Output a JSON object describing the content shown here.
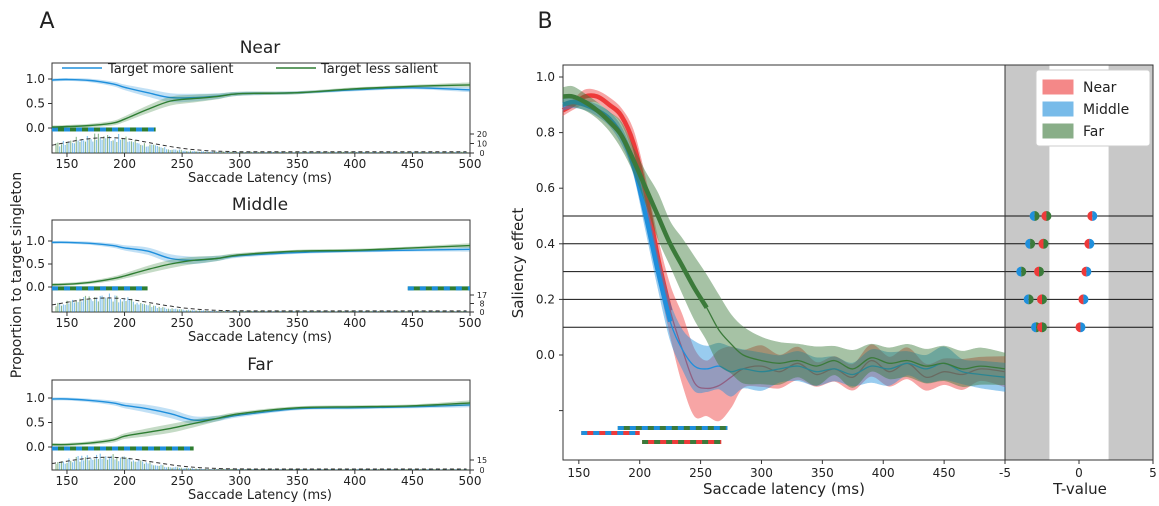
{
  "panel_labels": {
    "a": "A",
    "b": "B"
  },
  "colors": {
    "more_salient": "#1f8fdc",
    "less_salient": "#2e7d32",
    "near": "#ee3a3a",
    "middle": "#1f8fdc",
    "far": "#3b7a3a",
    "shade": "#c8c8c8"
  },
  "panel_a": {
    "ylabel": "Proportion to target singleton",
    "xlabel": "Saccade Latency (ms)",
    "xticks": [
      150,
      200,
      250,
      300,
      350,
      400,
      450,
      500
    ],
    "yticks": [
      "1.0",
      "0.5",
      "0.0"
    ],
    "legend": [
      "Target more salient",
      "Target less salient"
    ],
    "subplots": [
      {
        "title": "Near",
        "hist_ticks": [
          "20",
          "10",
          "0"
        ]
      },
      {
        "title": "Middle",
        "hist_ticks": [
          "17",
          "8",
          "0"
        ]
      },
      {
        "title": "Far",
        "hist_ticks": [
          "15",
          "0"
        ]
      }
    ]
  },
  "panel_b": {
    "ylabel": "Saliency effect",
    "xlabel": "Saccade latency (ms)",
    "tlabel": "T-value",
    "xticks": [
      150,
      200,
      250,
      300,
      350,
      400,
      450
    ],
    "yticks": [
      "1.0",
      "0.8",
      "0.6",
      "0.4",
      "0.2",
      "0.0"
    ],
    "tticks": [
      "-5",
      "0",
      "5"
    ],
    "legend": [
      "Near",
      "Middle",
      "Far"
    ]
  },
  "chart_data": [
    {
      "type": "line",
      "title": "Near",
      "xlim": [
        137,
        500
      ],
      "ylim": [
        -0.2,
        1.15
      ],
      "series": [
        {
          "name": "Target more salient",
          "x": [
            137,
            150,
            170,
            190,
            200,
            220,
            240,
            260,
            280,
            300,
            350,
            400,
            450,
            500
          ],
          "y": [
            0.98,
            0.99,
            0.97,
            0.9,
            0.83,
            0.72,
            0.62,
            0.62,
            0.65,
            0.7,
            0.72,
            0.78,
            0.82,
            0.78
          ]
        },
        {
          "name": "Target less salient",
          "x": [
            137,
            150,
            170,
            190,
            200,
            220,
            240,
            260,
            280,
            300,
            350,
            400,
            450,
            500
          ],
          "y": [
            0.02,
            0.03,
            0.05,
            0.1,
            0.18,
            0.38,
            0.55,
            0.6,
            0.64,
            0.7,
            0.72,
            0.8,
            0.85,
            0.88
          ]
        }
      ]
    },
    {
      "type": "line",
      "title": "Middle",
      "xlim": [
        137,
        500
      ],
      "ylim": [
        -0.2,
        1.15
      ],
      "series": [
        {
          "name": "Target more salient",
          "x": [
            137,
            150,
            170,
            190,
            200,
            220,
            240,
            260,
            280,
            300,
            350,
            400,
            450,
            500
          ],
          "y": [
            0.97,
            0.97,
            0.95,
            0.9,
            0.85,
            0.78,
            0.62,
            0.58,
            0.62,
            0.68,
            0.75,
            0.78,
            0.8,
            0.82
          ]
        },
        {
          "name": "Target less salient",
          "x": [
            137,
            150,
            170,
            190,
            200,
            220,
            240,
            260,
            280,
            300,
            350,
            400,
            450,
            500
          ],
          "y": [
            0.05,
            0.06,
            0.1,
            0.18,
            0.24,
            0.38,
            0.5,
            0.58,
            0.62,
            0.7,
            0.78,
            0.8,
            0.85,
            0.9
          ]
        }
      ]
    },
    {
      "type": "line",
      "title": "Far",
      "xlim": [
        137,
        500
      ],
      "ylim": [
        -0.2,
        1.15
      ],
      "series": [
        {
          "name": "Target more salient",
          "x": [
            137,
            150,
            170,
            190,
            200,
            220,
            240,
            260,
            280,
            300,
            350,
            400,
            450,
            500
          ],
          "y": [
            0.98,
            0.98,
            0.95,
            0.9,
            0.85,
            0.78,
            0.68,
            0.55,
            0.58,
            0.65,
            0.78,
            0.8,
            0.82,
            0.86
          ]
        },
        {
          "name": "Target less salient",
          "x": [
            137,
            150,
            170,
            190,
            200,
            220,
            240,
            260,
            280,
            300,
            350,
            400,
            450,
            500
          ],
          "y": [
            0.05,
            0.05,
            0.08,
            0.14,
            0.22,
            0.3,
            0.38,
            0.48,
            0.58,
            0.68,
            0.8,
            0.82,
            0.84,
            0.9
          ]
        }
      ]
    },
    {
      "type": "line",
      "xlim": [
        137,
        500
      ],
      "ylim": [
        -0.38,
        1.05
      ],
      "series": [
        {
          "name": "Near",
          "x": [
            137,
            145,
            155,
            165,
            175,
            185,
            195,
            205,
            215,
            225,
            235,
            245,
            255,
            265,
            275,
            285,
            300,
            315,
            330,
            345,
            360,
            375,
            390,
            405,
            420,
            435,
            450,
            465,
            480,
            500
          ],
          "y": [
            0.88,
            0.9,
            0.93,
            0.93,
            0.9,
            0.86,
            0.76,
            0.58,
            0.35,
            0.16,
            0.02,
            -0.1,
            -0.12,
            -0.11,
            -0.08,
            -0.05,
            -0.04,
            -0.06,
            -0.03,
            -0.07,
            -0.05,
            -0.08,
            -0.02,
            -0.06,
            -0.03,
            -0.08,
            -0.06,
            -0.07,
            -0.05,
            -0.06
          ]
        },
        {
          "name": "Middle",
          "x": [
            137,
            145,
            155,
            165,
            175,
            185,
            195,
            205,
            215,
            225,
            235,
            245,
            255,
            265,
            275,
            285,
            300,
            315,
            330,
            345,
            360,
            375,
            390,
            405,
            420,
            435,
            450,
            465,
            480,
            500
          ],
          "y": [
            0.9,
            0.91,
            0.9,
            0.88,
            0.85,
            0.79,
            0.68,
            0.5,
            0.3,
            0.12,
            0.02,
            -0.04,
            -0.05,
            -0.04,
            -0.06,
            -0.05,
            -0.06,
            -0.05,
            -0.04,
            -0.06,
            -0.05,
            -0.07,
            -0.04,
            -0.05,
            -0.03,
            -0.05,
            -0.03,
            -0.06,
            -0.07,
            -0.08
          ]
        },
        {
          "name": "Far",
          "x": [
            137,
            145,
            155,
            165,
            175,
            185,
            195,
            205,
            215,
            225,
            235,
            245,
            255,
            265,
            275,
            285,
            300,
            315,
            330,
            345,
            360,
            375,
            390,
            405,
            420,
            435,
            450,
            465,
            480,
            500
          ],
          "y": [
            0.93,
            0.93,
            0.91,
            0.88,
            0.84,
            0.79,
            0.7,
            0.6,
            0.5,
            0.4,
            0.32,
            0.24,
            0.17,
            0.09,
            0.04,
            0.0,
            -0.02,
            -0.03,
            -0.02,
            -0.04,
            -0.02,
            -0.05,
            -0.01,
            -0.03,
            -0.02,
            -0.04,
            -0.03,
            -0.05,
            -0.04,
            -0.05
          ]
        }
      ]
    },
    {
      "type": "scatter",
      "xlabel": "T-value",
      "xlim": [
        -5,
        5
      ],
      "thresholds": [
        0.5,
        0.4,
        0.3,
        0.2,
        0.1
      ],
      "points": [
        {
          "level": 0.5,
          "near": -2.2,
          "middle": -3.0,
          "far": -2.8,
          "near_pos": 0.9,
          "middle_pos": 0.9
        },
        {
          "level": 0.4,
          "near": -2.4,
          "middle": -3.3,
          "far": -2.5,
          "near_pos": 0.7,
          "middle_pos": 0.7
        },
        {
          "level": 0.3,
          "near": -2.7,
          "middle": -3.9,
          "far": -2.9,
          "near_pos": 0.5,
          "middle_pos": 0.5
        },
        {
          "level": 0.2,
          "near": -2.5,
          "middle": -3.4,
          "far": -2.8,
          "near_pos": 0.3,
          "middle_pos": 0.3
        },
        {
          "level": 0.1,
          "near": -2.5,
          "middle": -2.9,
          "far": -2.6,
          "near_pos": 0.1,
          "middle_pos": 0.1
        }
      ]
    }
  ]
}
